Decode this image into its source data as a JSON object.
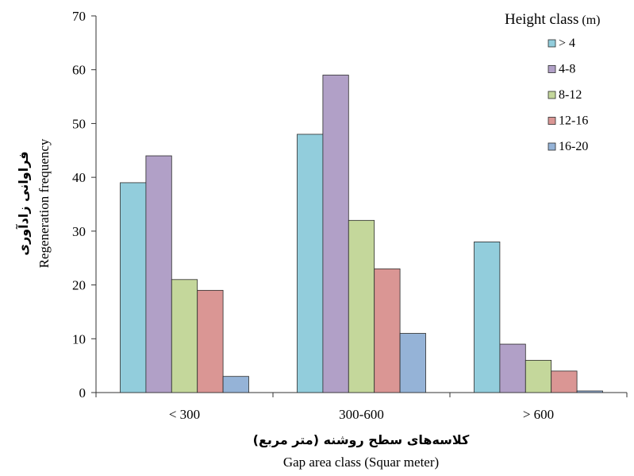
{
  "chart_data": {
    "type": "bar",
    "categories": [
      "< 300",
      "300-600",
      "> 600"
    ],
    "series": [
      {
        "name": "> 4",
        "color": "#92cddc",
        "values": [
          39,
          48,
          28
        ]
      },
      {
        "name": "4-8",
        "color": "#b1a0c7",
        "values": [
          44,
          59,
          9
        ]
      },
      {
        "name": "8-12",
        "color": "#c4d79b",
        "values": [
          21,
          32,
          6
        ]
      },
      {
        "name": "12-16",
        "color": "#da9694",
        "values": [
          19,
          23,
          4
        ]
      },
      {
        "name": "16-20",
        "color": "#95b3d7",
        "values": [
          3,
          11,
          0.3
        ]
      }
    ],
    "ylim": [
      0,
      70
    ],
    "yticks": [
      0,
      10,
      20,
      30,
      40,
      50,
      60,
      70
    ],
    "xlabel_fa": "کلاسه‌های سطح روشنه (متر مربع)",
    "xlabel": "Gap area class (Squar meter)",
    "ylabel_fa": "فراوانی زادآوری",
    "ylabel": "Regeneration frequency",
    "legend_title": "Height class",
    "legend_title_unit": "(m)",
    "legend_position": "top-right",
    "grid": false
  }
}
